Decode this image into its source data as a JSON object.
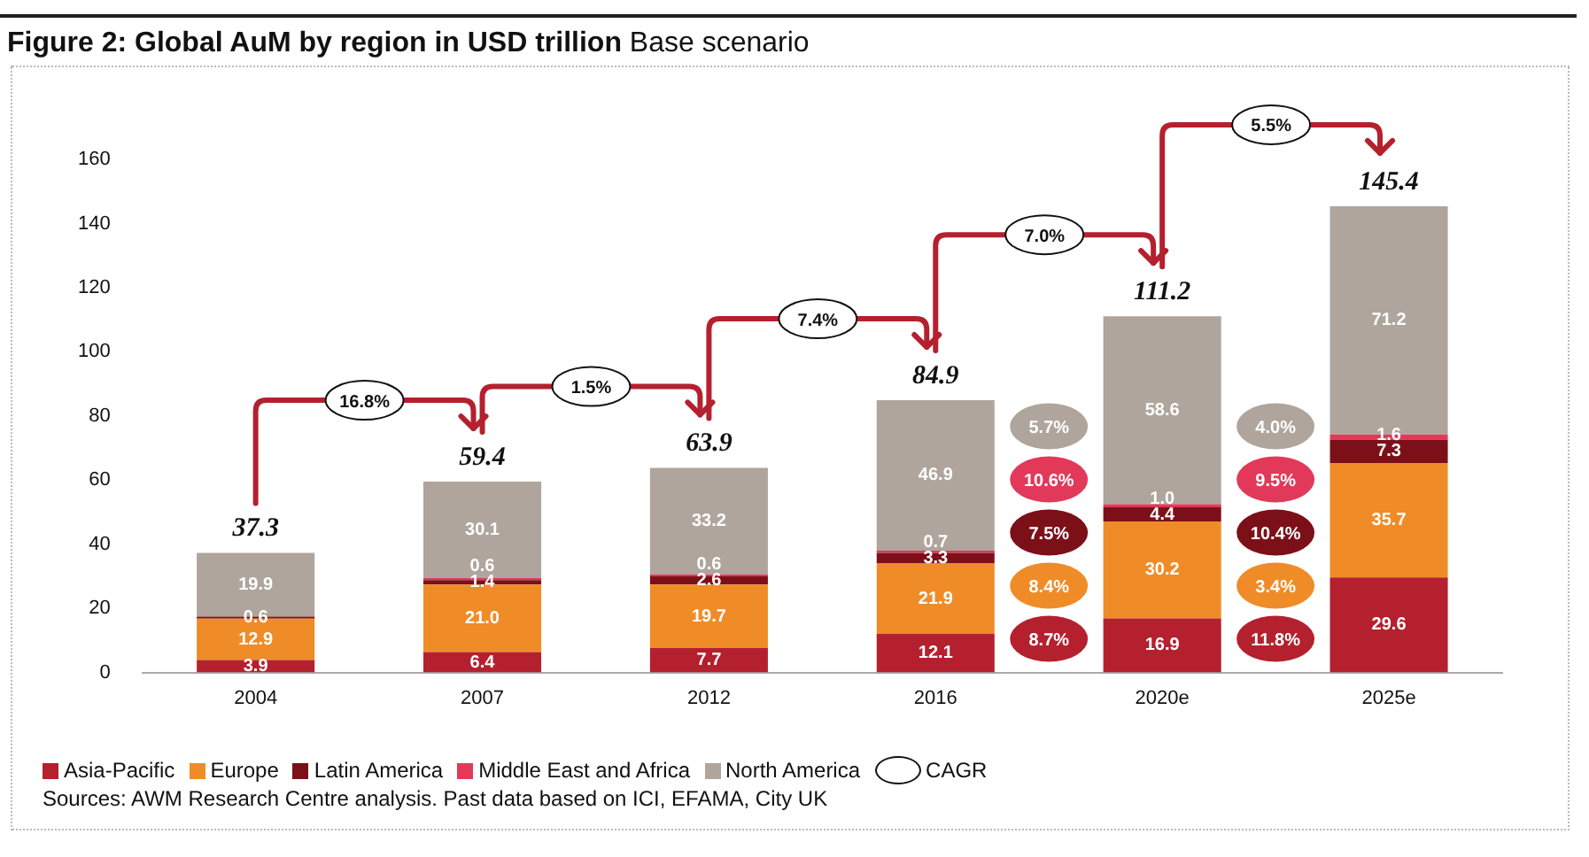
{
  "chart_data": {
    "type": "bar",
    "stacked": true,
    "title": "Figure 2: Global AuM by region in USD trillion",
    "subtitle": "Base scenario",
    "categories": [
      "2004",
      "2007",
      "2012",
      "2016",
      "2020e",
      "2025e"
    ],
    "series": [
      {
        "name": "Asia-Pacific",
        "color": "#b5202e",
        "values": [
          3.9,
          6.4,
          7.7,
          12.1,
          16.9,
          29.6
        ]
      },
      {
        "name": "Europe",
        "color": "#ef8c28",
        "values": [
          12.9,
          21.0,
          19.7,
          21.9,
          30.2,
          35.7
        ],
        "value_labels": [
          "12.9",
          "21.0",
          "19.7",
          "21.9",
          "30.2",
          "35.7"
        ]
      },
      {
        "name": "Latin America",
        "color": "#7c1019",
        "values": [
          0.6,
          1.4,
          2.6,
          3.3,
          4.4,
          7.3
        ]
      },
      {
        "name": "Middle East and Africa",
        "color": "#e2395a",
        "values": [
          null,
          0.6,
          0.6,
          0.7,
          1.0,
          1.6
        ],
        "value_labels": [
          null,
          "0.6",
          "0.6",
          "0.7",
          "1.0",
          "1.6"
        ]
      },
      {
        "name": "North America",
        "color": "#afa59c",
        "values": [
          19.9,
          30.1,
          33.2,
          46.9,
          58.6,
          71.2
        ]
      }
    ],
    "totals": [
      "37.3",
      "59.4",
      "63.9",
      "84.9",
      "111.2",
      "145.4"
    ],
    "data_labels": true,
    "ylim": [
      0,
      160
    ],
    "yticks": [
      0,
      20,
      40,
      60,
      80,
      100,
      120,
      140,
      160
    ],
    "grid": false,
    "legend": "bottom left",
    "annotations": [
      "16.8%",
      "1.5%",
      "7.4%",
      "7.0%",
      "5.5%",
      "8.7%",
      "8.4%",
      "7.5%",
      "10.6%",
      "5.7%",
      "11.8%",
      "3.4%",
      "10.4%",
      "9.5%",
      "4.0%",
      "CAGR",
      "Sources: AWM Research Centre analysis. Past data based on ICI, EFAMA, City UK"
    ]
  }
}
